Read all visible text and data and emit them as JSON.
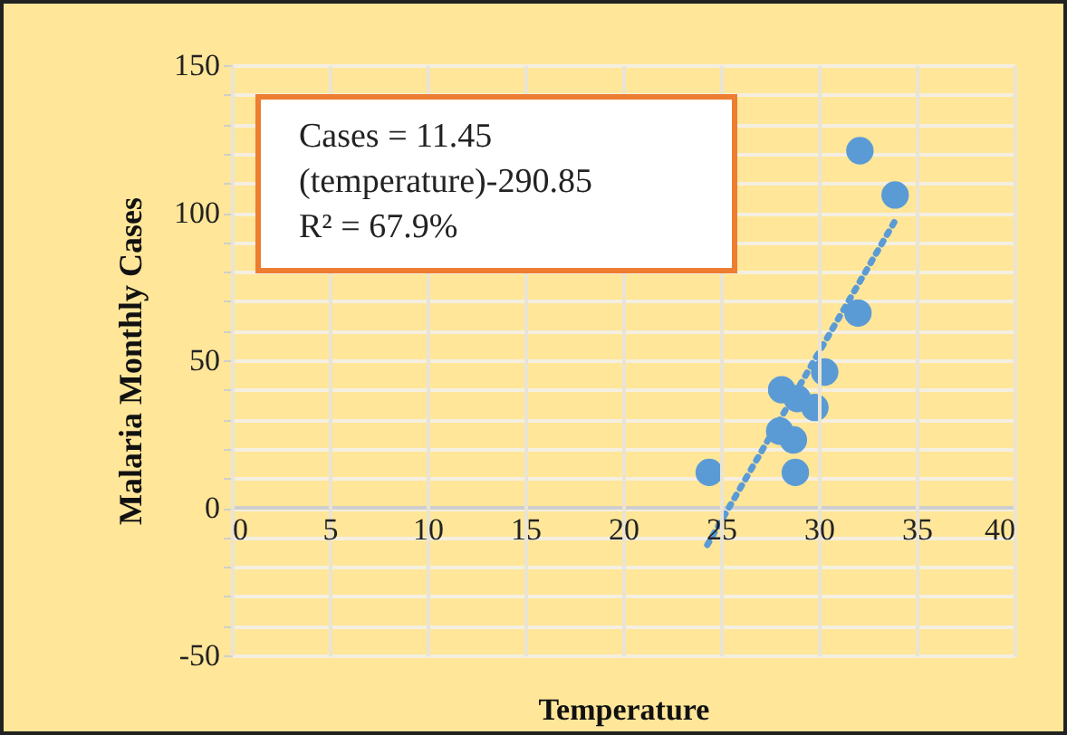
{
  "chart_data": {
    "type": "scatter",
    "xlabel": "Temperature",
    "ylabel": "Malaria Monthly Cases",
    "annotations": [
      "Cases = 11.45\n(temperature)-290.85\nR² = 67.9%"
    ],
    "series": [
      {
        "color": "#5b9bd5",
        "x": [
          24.4,
          28.1,
          28.0,
          28.9,
          29.8,
          28.7,
          28.8,
          30.3,
          32.0,
          32.1,
          33.9
        ],
        "values": [
          12,
          40,
          26,
          37,
          34,
          23,
          12,
          46,
          66,
          121,
          106
        ]
      },
      {
        "type": "line",
        "color": "#5b9bd5",
        "line_style": "dotted",
        "marker": "none",
        "x": [
          24.3,
          33.9
        ],
        "values": [
          -12.6,
          97.3
        ]
      }
    ],
    "marker": "circle",
    "grid": true,
    "xlim": [
      0,
      40
    ],
    "xticks": [
      0,
      5,
      10,
      15,
      20,
      25,
      30,
      35,
      40
    ],
    "ylim": [
      -50,
      150
    ],
    "yticks": [
      -50,
      {
        "value": -40,
        "label": null
      },
      {
        "value": -30,
        "label": null
      },
      {
        "value": -20,
        "label": null
      },
      {
        "value": -10,
        "label": null
      },
      0,
      {
        "value": 10,
        "label": null
      },
      {
        "value": 20,
        "label": null
      },
      {
        "value": 30,
        "label": null
      },
      {
        "value": 40,
        "label": null
      },
      50,
      {
        "value": 60,
        "label": null
      },
      {
        "value": 70,
        "label": null
      },
      {
        "value": 80,
        "label": null
      },
      {
        "value": 90,
        "label": null
      },
      100,
      {
        "value": 110,
        "label": null
      },
      {
        "value": 120,
        "label": null
      },
      {
        "value": 130,
        "label": null
      },
      {
        "value": 140,
        "label": null
      },
      150
    ]
  }
}
